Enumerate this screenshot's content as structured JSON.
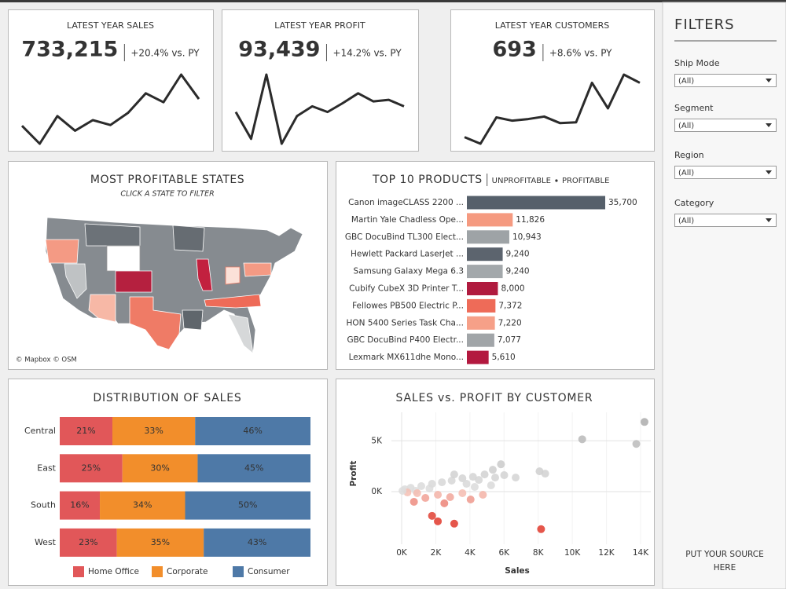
{
  "chart_data": [
    {
      "type": "line",
      "title": "LATEST YEAR SALES",
      "kpi": {
        "value": 733215,
        "label": "733,215"
      },
      "change": "+20.4% vs. PY",
      "color": "#2b2b2b",
      "values": [
        40,
        18,
        52,
        34,
        47,
        41,
        56,
        80,
        69,
        103,
        73
      ]
    },
    {
      "type": "line",
      "title": "LATEST YEAR PROFIT",
      "kpi": {
        "value": 93439,
        "label": "93,439"
      },
      "change": "+14.2% vs. PY",
      "color": "#2b2b2b",
      "values": [
        57,
        24,
        103,
        18,
        52,
        64,
        57,
        68,
        80,
        70,
        72,
        64
      ]
    },
    {
      "type": "line",
      "title": "LATEST YEAR CUSTOMERS",
      "kpi": {
        "value": 693,
        "label": "693"
      },
      "change": "+8.6% vs. PY",
      "color": "#2b2b2b",
      "values": [
        27,
        19,
        51,
        47,
        49,
        52,
        44,
        45,
        93,
        62,
        103,
        93
      ]
    },
    {
      "type": "hbar",
      "title": "TOP 10 PRODUCTS",
      "legend": [
        {
          "name": "UNPROFITABLE",
          "color": "#e15759"
        },
        {
          "name": "PROFITABLE",
          "color": "#333333"
        }
      ],
      "categories": [
        "Canon imageCLASS 2200 ...",
        "Martin Yale Chadless Ope...",
        "GBC DocuBind TL300 Elect...",
        "Hewlett Packard LaserJet ...",
        "Samsung Galaxy Mega 6.3",
        "Cubify CubeX 3D Printer T...",
        "Fellowes PB500 Electric P...",
        "HON 5400 Series Task Cha...",
        "GBC DocuBind P400 Electr...",
        "Lexmark MX611dhe Mono..."
      ],
      "values": [
        35700,
        11826,
        10943,
        9240,
        9240,
        8000,
        7372,
        7220,
        7077,
        5610
      ],
      "value_labels": [
        "35,700",
        "11,826",
        "10,943",
        "9,240",
        "9,240",
        "8,000",
        "7,372",
        "7,220",
        "7,077",
        "5,610"
      ],
      "colors": [
        "#56606b",
        "#f59a80",
        "#9ea3a6",
        "#5c646e",
        "#a3a8ab",
        "#b01b3f",
        "#ee6b58",
        "#f6a088",
        "#a1a5a8",
        "#b3193f"
      ]
    },
    {
      "type": "stacked-hbar",
      "title": "DISTRIBUTION OF SALES",
      "categories": [
        "Central",
        "East",
        "South",
        "West"
      ],
      "series": [
        {
          "name": "Home Office",
          "color": "#e15759",
          "values": [
            21,
            25,
            16,
            23
          ],
          "value_labels": [
            "21%",
            "25%",
            "16%",
            "23%"
          ]
        },
        {
          "name": "Corporate",
          "color": "#f28e2b",
          "values": [
            33,
            30,
            34,
            35
          ],
          "value_labels": [
            "33%",
            "30%",
            "34%",
            "35%"
          ]
        },
        {
          "name": "Consumer",
          "color": "#4e79a7",
          "values": [
            46,
            45,
            50,
            43
          ],
          "value_labels": [
            "46%",
            "45%",
            "50%",
            "43%"
          ]
        }
      ]
    },
    {
      "type": "scatter",
      "title": "SALES vs. PROFIT BY CUSTOMER",
      "x_label": "Sales",
      "y_label": "Profit",
      "xlim": [
        -600,
        14600
      ],
      "ylim": [
        -6100,
        7800
      ],
      "xticks": [
        {
          "value": 0,
          "label": "0K"
        },
        {
          "value": 2000,
          "label": "2K"
        },
        {
          "value": 4000,
          "label": "4K"
        },
        {
          "value": 6000,
          "label": "6K"
        },
        {
          "value": 8000,
          "label": "8K"
        },
        {
          "value": 10000,
          "label": "10K"
        },
        {
          "value": 12000,
          "label": "12K"
        },
        {
          "value": 14000,
          "label": "14K"
        }
      ],
      "yticks": [
        {
          "value": 0,
          "label": "0K"
        },
        {
          "value": 5000,
          "label": "5K"
        }
      ],
      "x": [
        14230,
        13750,
        10580,
        8080,
        8410,
        8170,
        5820,
        5340,
        6010,
        6680,
        4860,
        4180,
        3560,
        2930,
        2360,
        1780,
        1150,
        530,
        190,
        820,
        1630,
        3080,
        3800,
        4520,
        5240,
        2120,
        2840,
        1390,
        720,
        4040,
        4760,
        1780,
        3080,
        2120,
        910,
        340,
        50,
        2500,
        3560,
        4280,
        5480
      ],
      "y": [
        6850,
        4690,
        5150,
        2000,
        1770,
        -3690,
        2690,
        2150,
        1620,
        1380,
        1690,
        1460,
        1310,
        1080,
        920,
        770,
        540,
        380,
        230,
        80,
        310,
        1690,
        770,
        1150,
        620,
        -310,
        -540,
        -620,
        -1000,
        -770,
        -310,
        -2380,
        -3150,
        -2920,
        -150,
        -80,
        80,
        -1150,
        -150,
        460,
        1380
      ]
    }
  ],
  "map": {
    "title": "MOST PROFITABLE STATES",
    "subtitle": "CLICK A STATE TO FILTER",
    "attribution": "© Mapbox  © OSM"
  },
  "filters": {
    "title": "FILTERS",
    "items": [
      {
        "label": "Ship Mode",
        "value": "(All)"
      },
      {
        "label": "Segment",
        "value": "(All)"
      },
      {
        "label": "Region",
        "value": "(All)"
      },
      {
        "label": "Category",
        "value": "(All)"
      }
    ]
  },
  "source_note": [
    "PUT YOUR SOURCE",
    "HERE"
  ]
}
